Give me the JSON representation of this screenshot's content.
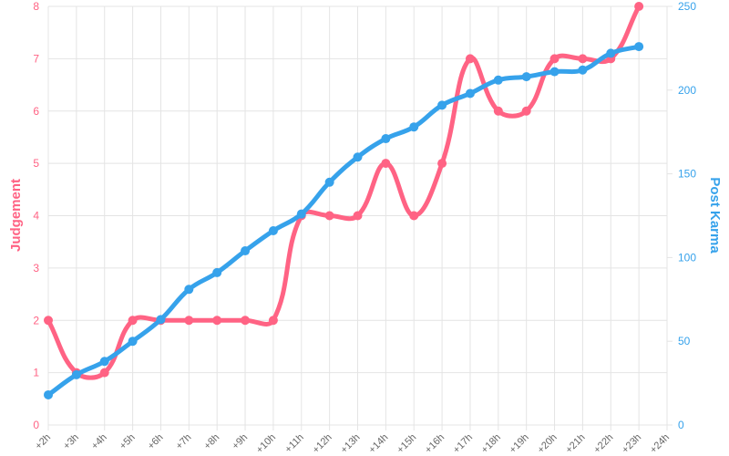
{
  "chart_data": {
    "type": "line",
    "categories": [
      "+2h",
      "+3h",
      "+4h",
      "+5h",
      "+6h",
      "+7h",
      "+8h",
      "+9h",
      "+10h",
      "+11h",
      "+12h",
      "+13h",
      "+14h",
      "+15h",
      "+16h",
      "+17h",
      "+18h",
      "+19h",
      "+20h",
      "+21h",
      "+22h",
      "+23h",
      "+24h"
    ],
    "series": [
      {
        "name": "Judgement",
        "color": "#ff6384",
        "axis": "y",
        "values": [
          2,
          1,
          1,
          2,
          2,
          2,
          2,
          2,
          2,
          4,
          4,
          4,
          5,
          4,
          5,
          7,
          6,
          6,
          7,
          7,
          7,
          8,
          null
        ]
      },
      {
        "name": "Post Karma",
        "color": "#36a2eb",
        "axis": "y2",
        "values": [
          18,
          30,
          38,
          50,
          63,
          81,
          91,
          104,
          116,
          126,
          145,
          160,
          171,
          178,
          191,
          198,
          206,
          208,
          211,
          212,
          222,
          226,
          null
        ]
      }
    ],
    "ylabel": "Judgement",
    "y2label": "Post Karma",
    "ylim": [
      0,
      8
    ],
    "yticks": [
      0,
      1,
      2,
      3,
      4,
      5,
      6,
      7,
      8
    ],
    "y2lim": [
      0,
      250
    ],
    "y2ticks": [
      0,
      50,
      100,
      150,
      200,
      250
    ],
    "grid": true
  }
}
